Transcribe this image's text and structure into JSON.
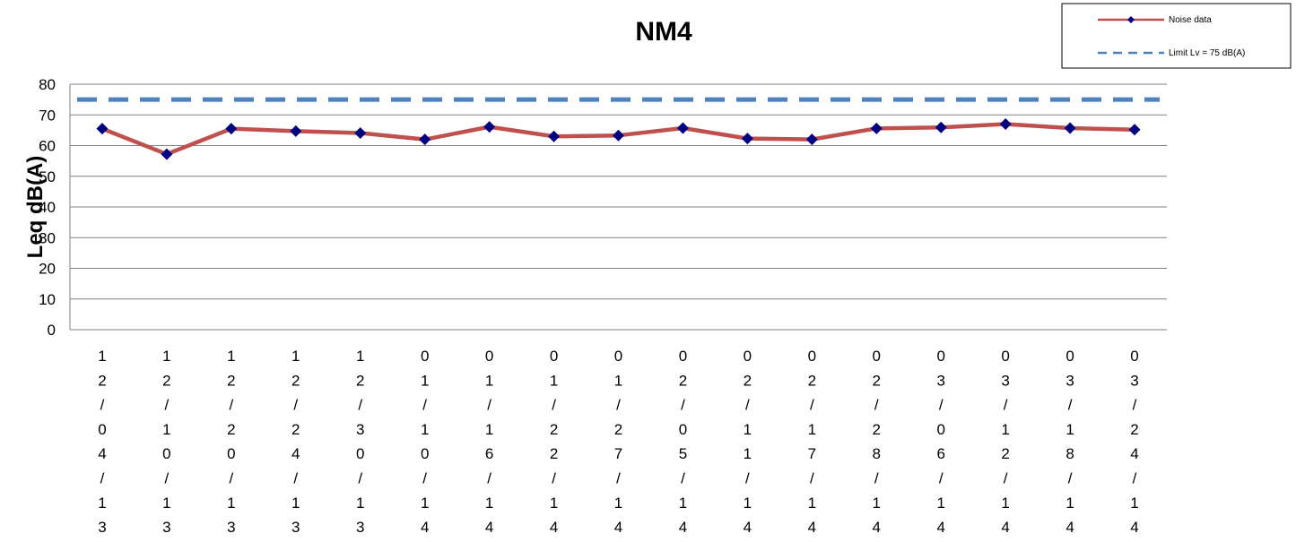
{
  "chart_data": {
    "type": "line",
    "title": "NM4",
    "xlabel": "",
    "ylabel": "Leq dB(A)",
    "ylim": [
      0,
      80
    ],
    "yticks": [
      "0",
      "10",
      "20",
      "30",
      "40",
      "50",
      "60",
      "70",
      "80"
    ],
    "grid": true,
    "legend_position": "top-right",
    "categories": [
      "12/04/13",
      "12/10/13",
      "12/20/13",
      "12/24/13",
      "12/30/13",
      "01/10/14",
      "01/16/14",
      "01/22/14",
      "01/27/14",
      "02/05/14",
      "02/11/14",
      "02/17/14",
      "02/28/14",
      "03/06/14",
      "03/12/14",
      "03/18/14",
      "03/24/14"
    ],
    "series": [
      {
        "name": "Noise data",
        "color": "#C0504D",
        "marker_color": "#000080",
        "values": [
          65.5,
          57.2,
          65.5,
          64.7,
          64.1,
          62.0,
          66.1,
          63.0,
          63.3,
          65.7,
          62.3,
          62.0,
          65.6,
          65.9,
          67.0,
          65.7,
          65.2
        ]
      },
      {
        "name": "Limit Lv = 75 dB(A)",
        "color": "#4F81BD",
        "style": "dashed",
        "values": [
          75,
          75,
          75,
          75,
          75,
          75,
          75,
          75,
          75,
          75,
          75,
          75,
          75,
          75,
          75,
          75,
          75
        ]
      }
    ]
  }
}
